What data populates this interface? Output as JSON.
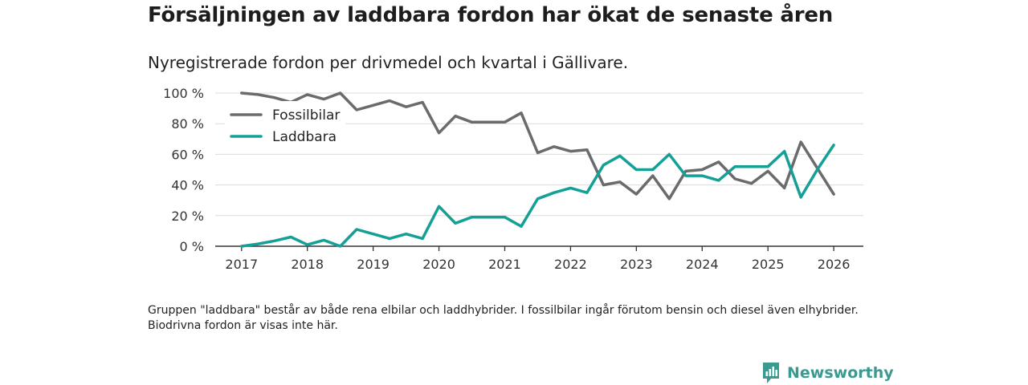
{
  "title": "Försäljningen av laddbara fordon har ökat de senaste åren",
  "subtitle": "Nyregistrerade fordon per drivmedel och kvartal i Gällivare.",
  "footnote": "Gruppen \"laddbara\" består av både rena elbilar och laddhybrider. I fossilbilar ingår förutom bensin och diesel även elhybrider. Biodrivna fordon är visas inte här.",
  "brand": {
    "name": "Newsworthy",
    "icon": "newsworthy-logo-icon",
    "color": "#3a9a8f"
  },
  "chart_data": {
    "type": "line",
    "title": "Försäljningen av laddbara fordon har ökat de senaste åren",
    "subtitle": "Nyregistrerade fordon per drivmedel och kvartal i Gällivare.",
    "xlabel": "",
    "ylabel": "",
    "x": [
      2017,
      2017.25,
      2017.5,
      2017.75,
      2018,
      2018.25,
      2018.5,
      2018.75,
      2019,
      2019.25,
      2019.5,
      2019.75,
      2020,
      2020.25,
      2020.5,
      2020.75,
      2021,
      2021.25,
      2021.5,
      2021.75,
      2022,
      2022.25,
      2022.5,
      2022.75,
      2023,
      2023.25,
      2023.5,
      2023.75,
      2024,
      2024.25,
      2024.5,
      2024.75,
      2025,
      2025.25,
      2025.5,
      2025.75,
      2026
    ],
    "xlim": [
      2016.6,
      2026.45
    ],
    "ylim": [
      0,
      100
    ],
    "xticks": [
      2017,
      2018,
      2019,
      2020,
      2021,
      2022,
      2023,
      2024,
      2025,
      2026
    ],
    "yticks": [
      0,
      20,
      40,
      60,
      80,
      100
    ],
    "ytick_labels": [
      "0 %",
      "20 %",
      "40 %",
      "60 %",
      "80 %",
      "100 %"
    ],
    "grid": true,
    "legend_position": "top-left",
    "series": [
      {
        "name": "Fossilbilar",
        "color": "#6b6b6e",
        "values": [
          100,
          99,
          97,
          94,
          99,
          96,
          100,
          89,
          92,
          95,
          91,
          94,
          74,
          85,
          81,
          81,
          81,
          87,
          61,
          65,
          62,
          63,
          40,
          42,
          34,
          46,
          31,
          49,
          50,
          55,
          44,
          41,
          49,
          38,
          68,
          51,
          34
        ]
      },
      {
        "name": "Laddbara",
        "color": "#14a096",
        "values": [
          0,
          1.5,
          3.5,
          6,
          1,
          4,
          0,
          11,
          8,
          5,
          8,
          5,
          26,
          15,
          19,
          19,
          19,
          13,
          31,
          35,
          38,
          35,
          53,
          59,
          50,
          50,
          60,
          46,
          46,
          43,
          52,
          52,
          52,
          62,
          32,
          50,
          66
        ]
      }
    ]
  }
}
